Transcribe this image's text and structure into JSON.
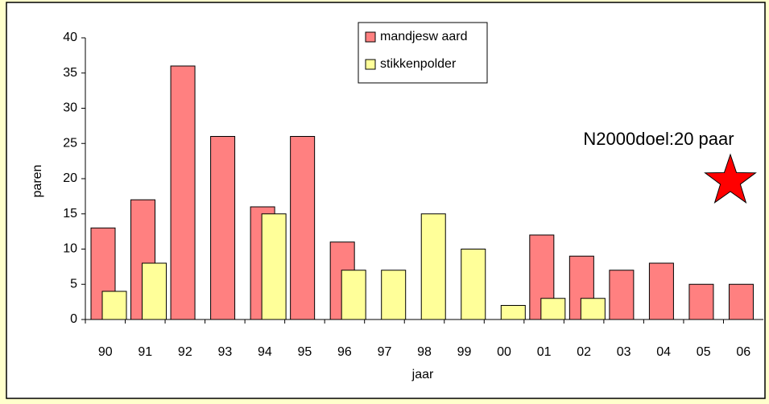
{
  "chart_data": {
    "type": "bar",
    "x_label": "jaar",
    "y_label": "paren",
    "categories": [
      "90",
      "91",
      "92",
      "93",
      "94",
      "95",
      "96",
      "97",
      "98",
      "99",
      "00",
      "01",
      "02",
      "03",
      "04",
      "05",
      "06"
    ],
    "series": [
      {
        "name": "mandjesw aard",
        "color": "#ff8080",
        "values": [
          13,
          17,
          36,
          26,
          16,
          26,
          11,
          null,
          null,
          null,
          null,
          12,
          9,
          7,
          8,
          5,
          5
        ]
      },
      {
        "name": "stikkenpolder",
        "color": "#ffff99",
        "values": [
          4,
          8,
          null,
          null,
          15,
          null,
          7,
          7,
          15,
          10,
          2,
          3,
          3,
          null,
          null,
          null,
          null
        ]
      }
    ],
    "ylim": [
      0,
      40
    ],
    "yticks": [
      0,
      5,
      10,
      15,
      20,
      25,
      30,
      35,
      40
    ],
    "target": {
      "label": "N2000doel:20 paar",
      "value": 20,
      "color": "#ff0000"
    }
  }
}
